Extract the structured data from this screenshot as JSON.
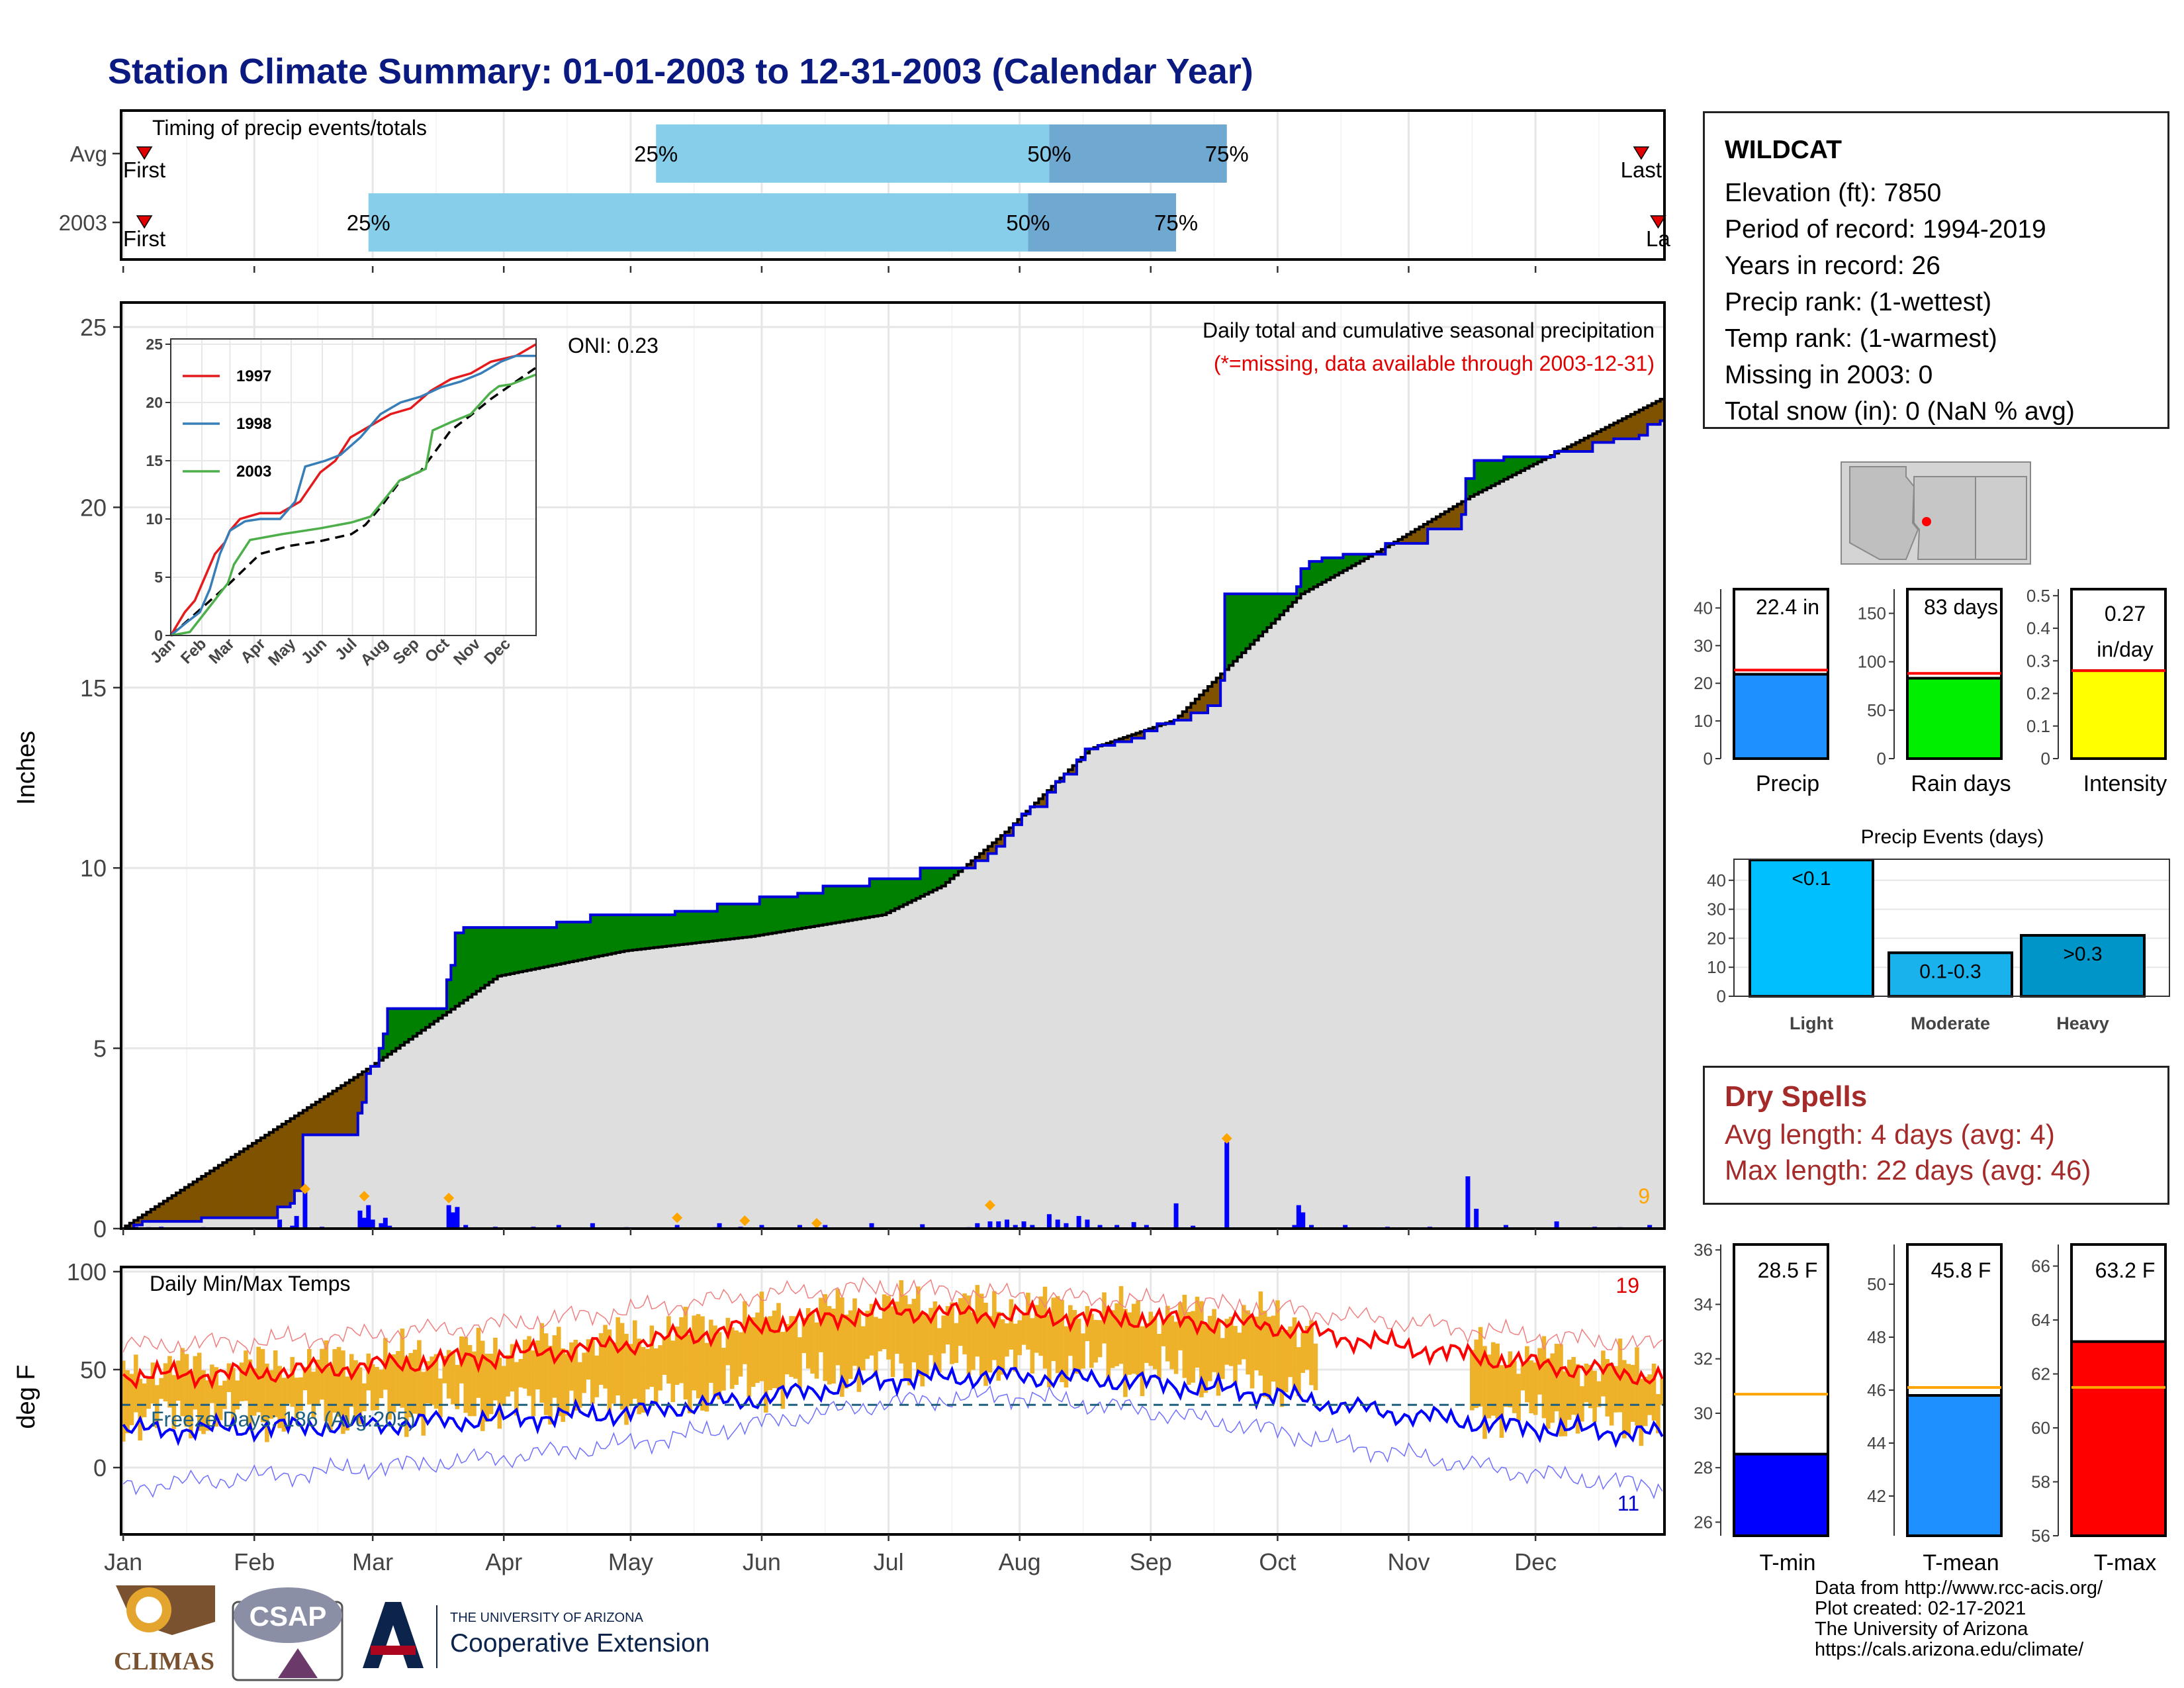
{
  "title": "Station Climate Summary: 01-01-2003 to 12-31-2003 (Calendar Year)",
  "months": [
    "Jan",
    "Feb",
    "Mar",
    "Apr",
    "May",
    "Jun",
    "Jul",
    "Aug",
    "Sep",
    "Oct",
    "Nov",
    "Dec"
  ],
  "timing": {
    "label": "Timing of precip events/totals",
    "rows": [
      {
        "name": "Avg",
        "first_label": "First",
        "last_label": "Last",
        "first_day": 6,
        "last_day": 360,
        "pcts": [
          {
            "label": "25%",
            "day": 127
          },
          {
            "label": "50%",
            "day": 220
          },
          {
            "label": "75%",
            "day": 262
          }
        ]
      },
      {
        "name": "2003",
        "first_label": "First",
        "last_label": "La",
        "first_day": 6,
        "last_day": 364,
        "pcts": [
          {
            "label": "25%",
            "day": 59
          },
          {
            "label": "50%",
            "day": 215
          },
          {
            "label": "75%",
            "day": 250
          }
        ]
      }
    ]
  },
  "precip_panel": {
    "ylabel": "Inches",
    "oni": "ONI: 0.23",
    "caption1": "Daily total and cumulative seasonal precipitation",
    "caption2": "(*=missing, data available through 2003-12-31)",
    "corner_count": "9",
    "ylim": [
      0,
      25
    ],
    "yticks": [
      0,
      5,
      10,
      15,
      20,
      25
    ],
    "cumulative_2003": [
      [
        1,
        0
      ],
      [
        4,
        0.1
      ],
      [
        6,
        0.2
      ],
      [
        19,
        0.2
      ],
      [
        20,
        0.3
      ],
      [
        37,
        0.3
      ],
      [
        38,
        0.6
      ],
      [
        41,
        0.7
      ],
      [
        42,
        1.05
      ],
      [
        44,
        2.6
      ],
      [
        56,
        2.6
      ],
      [
        57,
        3.2
      ],
      [
        58,
        3.5
      ],
      [
        59,
        4.3
      ],
      [
        60,
        4.5
      ],
      [
        62,
        5.0
      ],
      [
        63,
        5.4
      ],
      [
        64,
        6.1
      ],
      [
        77,
        6.1
      ],
      [
        78,
        6.9
      ],
      [
        79,
        7.3
      ],
      [
        80,
        8.2
      ],
      [
        82,
        8.35
      ],
      [
        103,
        8.35
      ],
      [
        104,
        8.5
      ],
      [
        111,
        8.5
      ],
      [
        112,
        8.7
      ],
      [
        131,
        8.7
      ],
      [
        132,
        8.8
      ],
      [
        141,
        8.8
      ],
      [
        142,
        9.0
      ],
      [
        151,
        9.0
      ],
      [
        152,
        9.2
      ],
      [
        160,
        9.2
      ],
      [
        161,
        9.3
      ],
      [
        166,
        9.3
      ],
      [
        167,
        9.5
      ],
      [
        177,
        9.5
      ],
      [
        178,
        9.7
      ],
      [
        189,
        9.7
      ],
      [
        190,
        10.0
      ],
      [
        201,
        10.0
      ],
      [
        203,
        10.2
      ],
      [
        206,
        10.4
      ],
      [
        208,
        10.6
      ],
      [
        210,
        10.9
      ],
      [
        212,
        11.2
      ],
      [
        214,
        11.5
      ],
      [
        216,
        11.7
      ],
      [
        220,
        12.1
      ],
      [
        222,
        12.4
      ],
      [
        224,
        12.6
      ],
      [
        227,
        13.0
      ],
      [
        229,
        13.3
      ],
      [
        232,
        13.4
      ],
      [
        236,
        13.5
      ],
      [
        240,
        13.6
      ],
      [
        243,
        13.8
      ],
      [
        246,
        14.0
      ],
      [
        250,
        14.1
      ],
      [
        254,
        14.3
      ],
      [
        258,
        14.5
      ],
      [
        261,
        15.2
      ],
      [
        262,
        17.6
      ],
      [
        278,
        17.6
      ],
      [
        279,
        17.8
      ],
      [
        280,
        18.3
      ],
      [
        282,
        18.5
      ],
      [
        285,
        18.6
      ],
      [
        290,
        18.7
      ],
      [
        300,
        19.0
      ],
      [
        310,
        19.4
      ],
      [
        318,
        19.8
      ],
      [
        319,
        20.8
      ],
      [
        321,
        21.3
      ],
      [
        328,
        21.4
      ],
      [
        338,
        21.4
      ],
      [
        340,
        21.55
      ],
      [
        349,
        21.8
      ],
      [
        354,
        21.9
      ],
      [
        360,
        22.0
      ],
      [
        362,
        22.3
      ],
      [
        365,
        22.4
      ]
    ],
    "avg_points": [
      [
        1,
        0
      ],
      [
        60,
        4.5
      ],
      [
        90,
        7.0
      ],
      [
        120,
        7.7
      ],
      [
        150,
        8.1
      ],
      [
        181,
        8.7
      ],
      [
        195,
        9.5
      ],
      [
        210,
        11.0
      ],
      [
        230,
        13.3
      ],
      [
        250,
        14.1
      ],
      [
        262,
        15.5
      ],
      [
        280,
        17.6
      ],
      [
        300,
        18.9
      ],
      [
        320,
        20.3
      ],
      [
        345,
        21.8
      ],
      [
        365,
        23.0
      ]
    ],
    "daily_bars": [
      [
        4,
        0.05
      ],
      [
        7,
        0.04
      ],
      [
        10,
        0.05
      ],
      [
        20,
        0.04
      ],
      [
        38,
        0.25
      ],
      [
        41,
        0.08
      ],
      [
        42,
        0.35
      ],
      [
        44,
        1.1
      ],
      [
        48,
        0.05
      ],
      [
        57,
        0.5
      ],
      [
        58,
        0.3
      ],
      [
        59,
        0.65
      ],
      [
        60,
        0.25
      ],
      [
        62,
        0.15
      ],
      [
        63,
        0.3
      ],
      [
        64,
        0.08
      ],
      [
        78,
        0.65
      ],
      [
        79,
        0.45
      ],
      [
        80,
        0.6
      ],
      [
        82,
        0.1
      ],
      [
        89,
        0.05
      ],
      [
        98,
        0.05
      ],
      [
        104,
        0.1
      ],
      [
        112,
        0.15
      ],
      [
        120,
        0.04
      ],
      [
        132,
        0.1
      ],
      [
        141,
        0.04
      ],
      [
        142,
        0.15
      ],
      [
        147,
        0.05
      ],
      [
        152,
        0.1
      ],
      [
        161,
        0.1
      ],
      [
        167,
        0.1
      ],
      [
        178,
        0.15
      ],
      [
        190,
        0.12
      ],
      [
        201,
        0.04
      ],
      [
        203,
        0.15
      ],
      [
        206,
        0.2
      ],
      [
        208,
        0.2
      ],
      [
        210,
        0.25
      ],
      [
        212,
        0.1
      ],
      [
        214,
        0.2
      ],
      [
        216,
        0.1
      ],
      [
        220,
        0.4
      ],
      [
        222,
        0.25
      ],
      [
        224,
        0.15
      ],
      [
        227,
        0.35
      ],
      [
        229,
        0.25
      ],
      [
        232,
        0.1
      ],
      [
        236,
        0.1
      ],
      [
        240,
        0.18
      ],
      [
        243,
        0.1
      ],
      [
        250,
        0.7
      ],
      [
        254,
        0.08
      ],
      [
        262,
        2.4
      ],
      [
        278,
        0.1
      ],
      [
        279,
        0.65
      ],
      [
        280,
        0.45
      ],
      [
        282,
        0.1
      ],
      [
        290,
        0.1
      ],
      [
        300,
        0.05
      ],
      [
        310,
        0.05
      ],
      [
        319,
        1.45
      ],
      [
        321,
        0.55
      ],
      [
        328,
        0.1
      ],
      [
        340,
        0.2
      ],
      [
        349,
        0.05
      ],
      [
        355,
        0.04
      ],
      [
        362,
        0.1
      ]
    ],
    "orange_markers": [
      [
        44,
        1.1
      ],
      [
        58,
        0.9
      ],
      [
        78,
        0.85
      ],
      [
        132,
        0.3
      ],
      [
        148,
        0.22
      ],
      [
        165,
        0.15
      ],
      [
        206,
        0.65
      ],
      [
        262,
        2.5
      ]
    ]
  },
  "inset": {
    "yticks": [
      0,
      5,
      10,
      15,
      20,
      25
    ],
    "series": [
      {
        "name": "1997",
        "color": "#e41a1c",
        "points": [
          [
            1,
            0
          ],
          [
            15,
            2
          ],
          [
            25,
            3
          ],
          [
            35,
            5
          ],
          [
            45,
            7
          ],
          [
            55,
            8
          ],
          [
            60,
            9
          ],
          [
            70,
            10
          ],
          [
            90,
            10.5
          ],
          [
            110,
            10.5
          ],
          [
            130,
            11.5
          ],
          [
            150,
            14
          ],
          [
            165,
            15
          ],
          [
            180,
            17
          ],
          [
            200,
            18
          ],
          [
            220,
            19
          ],
          [
            240,
            19.5
          ],
          [
            260,
            21
          ],
          [
            280,
            22
          ],
          [
            300,
            22.5
          ],
          [
            320,
            23.5
          ],
          [
            345,
            24
          ],
          [
            365,
            25
          ]
        ]
      },
      {
        "name": "1998",
        "color": "#377eb8",
        "points": [
          [
            1,
            0
          ],
          [
            15,
            1
          ],
          [
            30,
            2
          ],
          [
            40,
            4
          ],
          [
            50,
            7
          ],
          [
            60,
            9
          ],
          [
            75,
            9.8
          ],
          [
            90,
            10
          ],
          [
            110,
            10
          ],
          [
            125,
            11.5
          ],
          [
            135,
            14.5
          ],
          [
            155,
            15
          ],
          [
            170,
            15.5
          ],
          [
            190,
            17
          ],
          [
            210,
            19
          ],
          [
            230,
            20
          ],
          [
            250,
            20.5
          ],
          [
            270,
            21.3
          ],
          [
            290,
            21.8
          ],
          [
            310,
            22.5
          ],
          [
            330,
            23.5
          ],
          [
            345,
            24
          ],
          [
            365,
            24
          ]
        ]
      },
      {
        "name": "2003",
        "color": "#4daf4a",
        "points": [
          [
            1,
            0
          ],
          [
            20,
            0.3
          ],
          [
            40,
            2.5
          ],
          [
            58,
            4.5
          ],
          [
            64,
            6.1
          ],
          [
            80,
            8.2
          ],
          [
            112,
            8.7
          ],
          [
            150,
            9.2
          ],
          [
            181,
            9.7
          ],
          [
            200,
            10.2
          ],
          [
            215,
            11.8
          ],
          [
            229,
            13.3
          ],
          [
            255,
            14.3
          ],
          [
            262,
            17.6
          ],
          [
            280,
            18.3
          ],
          [
            300,
            19.0
          ],
          [
            319,
            20.8
          ],
          [
            328,
            21.4
          ],
          [
            340,
            21.55
          ],
          [
            365,
            22.4
          ]
        ]
      }
    ],
    "avg_points": [
      [
        1,
        0
      ],
      [
        60,
        4.5
      ],
      [
        90,
        7.0
      ],
      [
        120,
        7.7
      ],
      [
        150,
        8.1
      ],
      [
        181,
        8.7
      ],
      [
        195,
        9.5
      ],
      [
        210,
        11.0
      ],
      [
        230,
        13.3
      ],
      [
        250,
        14.1
      ],
      [
        262,
        15.5
      ],
      [
        280,
        17.6
      ],
      [
        300,
        18.9
      ],
      [
        320,
        20.3
      ],
      [
        345,
        21.8
      ],
      [
        365,
        23.0
      ]
    ]
  },
  "temp_panel": {
    "ylabel": "deg F",
    "label": "Daily Min/Max Temps",
    "freeze_label": "Freeze Days: 186 (Avg:205)",
    "count_hot": "19",
    "count_cold": "11",
    "ylim": [
      -30,
      102
    ],
    "yticks": [
      0,
      50,
      100
    ],
    "avg_max": [
      [
        1,
        47
      ],
      [
        30,
        48
      ],
      [
        60,
        52
      ],
      [
        90,
        57
      ],
      [
        120,
        63
      ],
      [
        150,
        72
      ],
      [
        181,
        80
      ],
      [
        210,
        78
      ],
      [
        240,
        76
      ],
      [
        270,
        73
      ],
      [
        300,
        63
      ],
      [
        330,
        54
      ],
      [
        365,
        46
      ]
    ],
    "avg_min": [
      [
        1,
        19
      ],
      [
        30,
        20
      ],
      [
        60,
        22
      ],
      [
        90,
        25
      ],
      [
        120,
        28
      ],
      [
        150,
        35
      ],
      [
        181,
        45
      ],
      [
        210,
        47
      ],
      [
        240,
        44
      ],
      [
        270,
        38
      ],
      [
        300,
        28
      ],
      [
        330,
        21
      ],
      [
        365,
        17
      ]
    ],
    "rec_max": [
      [
        1,
        62
      ],
      [
        30,
        64
      ],
      [
        60,
        68
      ],
      [
        90,
        73
      ],
      [
        120,
        80
      ],
      [
        150,
        88
      ],
      [
        181,
        92
      ],
      [
        210,
        88
      ],
      [
        240,
        85
      ],
      [
        270,
        82
      ],
      [
        300,
        75
      ],
      [
        330,
        68
      ],
      [
        365,
        62
      ]
    ],
    "rec_min": [
      [
        1,
        -10
      ],
      [
        30,
        -5
      ],
      [
        60,
        0
      ],
      [
        90,
        5
      ],
      [
        120,
        12
      ],
      [
        150,
        22
      ],
      [
        181,
        33
      ],
      [
        210,
        37
      ],
      [
        240,
        30
      ],
      [
        270,
        20
      ],
      [
        300,
        8
      ],
      [
        330,
        -2
      ],
      [
        365,
        -10
      ]
    ],
    "freeze_line": 32
  },
  "info": {
    "station": "WILDCAT",
    "lines": [
      "Elevation (ft): 7850",
      "Period of record: 1994-2019",
      "Years in record: 26",
      "Precip rank:  (1-wettest)",
      "Temp rank:  (1-warmest)",
      "Missing in 2003: 0",
      "Total snow (in): 0 (NaN % avg)"
    ]
  },
  "summary_bars": [
    {
      "name": "Precip",
      "value": 22.4,
      "avg": 23.5,
      "label": "22.4 in",
      "color": "#1e90ff",
      "ymax": 45,
      "ticks": [
        0,
        10,
        20,
        30,
        40
      ]
    },
    {
      "name": "Rain days",
      "value": 83,
      "avg": 88,
      "label": "83 days",
      "color": "#00ee00",
      "ymax": 175,
      "ticks": [
        0,
        50,
        100,
        150
      ]
    },
    {
      "name": "Intensity",
      "value": 0.27,
      "avg": 0.27,
      "label": "0.27 in/day",
      "color": "#ffff00",
      "ymax": 0.52,
      "ticks": [
        0.0,
        0.1,
        0.2,
        0.3,
        0.4,
        0.5
      ]
    }
  ],
  "events": {
    "title": "Precip Events (days)",
    "categories": [
      "Light",
      "Moderate",
      "Heavy"
    ],
    "bar_labels": [
      "<0.1",
      "0.1-0.3",
      ">0.3"
    ],
    "values": [
      47,
      15,
      21
    ],
    "colors": [
      "#00bfff",
      "#1ab2ec",
      "#0095c8"
    ],
    "ticks": [
      0,
      10,
      20,
      30,
      40
    ]
  },
  "dry_spells": {
    "title": "Dry Spells",
    "avg_line": "Avg length: 4 days (avg: 4)",
    "max_line": "Max length: 22 days (avg: 46)"
  },
  "temp_bars": [
    {
      "name": "T-min",
      "value": 28.5,
      "avg": 30.7,
      "label": "28.5 F",
      "color": "#0000ff",
      "ymin": 25.5,
      "ymax": 36.2,
      "ticks": [
        26,
        28,
        30,
        32,
        34,
        36
      ]
    },
    {
      "name": "T-mean",
      "value": 45.8,
      "avg": 46.1,
      "label": "45.8 F",
      "color": "#1e90ff",
      "ymin": 40.5,
      "ymax": 51.5,
      "ticks": [
        42,
        44,
        46,
        48,
        50
      ]
    },
    {
      "name": "T-max",
      "value": 63.2,
      "avg": 61.5,
      "label": "63.2 F",
      "color": "#ff0000",
      "ymin": 56,
      "ymax": 66.8,
      "ticks": [
        56,
        58,
        60,
        62,
        64,
        66
      ]
    }
  ],
  "credits": [
    "Data from http://www.rcc-acis.org/",
    "Plot created: 02-17-2021",
    "The University of Arizona",
    "https://cals.arizona.edu/climate/"
  ],
  "logos": {
    "climas": "CLIMAS",
    "csap": "CSAP",
    "ua_top": "THE UNIVERSITY OF ARIZONA",
    "ua_bottom": "Cooperative Extension"
  }
}
